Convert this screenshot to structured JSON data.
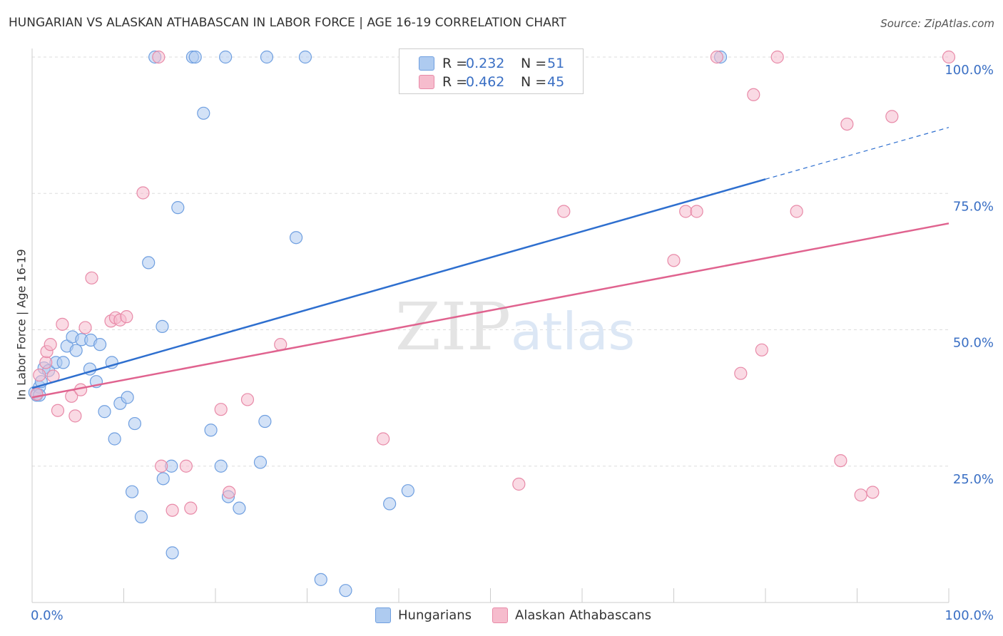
{
  "header": {
    "title": "HUNGARIAN VS ALASKAN ATHABASCAN IN LABOR FORCE | AGE 16-19 CORRELATION CHART",
    "source": "Source: ZipAtlas.com"
  },
  "watermark": {
    "zip": "ZIP",
    "atlas": "atlas"
  },
  "legend": {
    "r_key": "R =",
    "n_key": "N =",
    "rows": [
      {
        "r": "0.232",
        "n": "51"
      },
      {
        "r": "0.462",
        "n": "45"
      }
    ]
  },
  "colors": {
    "hungarian_fill": "#aecbf0",
    "hungarian_stroke": "#6f9fe0",
    "hungarian_line": "#2e6fcf",
    "alaskan_fill": "#f6bccd",
    "alaskan_stroke": "#e88aa8",
    "alaskan_line": "#e0638f",
    "tick_label": "#3a6fc4",
    "grid": "#dddddd"
  },
  "chart_data": {
    "type": "scatter",
    "title": "HUNGARIAN VS ALASKAN ATHABASCAN IN LABOR FORCE | AGE 16-19 CORRELATION CHART",
    "xlabel": "",
    "ylabel": "In Labor Force | Age 16-19",
    "xlim": [
      0,
      100
    ],
    "ylim": [
      0,
      100
    ],
    "x_tick_labels": [
      "0.0%",
      "100.0%"
    ],
    "y_ticks": [
      25,
      50,
      75,
      100
    ],
    "y_tick_labels": [
      "25.0%",
      "50.0%",
      "75.0%",
      "100.0%"
    ],
    "grid": true,
    "legend_position": "top-center",
    "series": [
      {
        "name": "Hungarians",
        "r": 0.232,
        "n": 51,
        "trend": {
          "x0": 0,
          "y0": 39.3,
          "x1": 80,
          "y1": 77.6,
          "dash_to_x": 100,
          "dash_to_y": 87.1
        },
        "points": [
          [
            0.3,
            38.5
          ],
          [
            0.5,
            38
          ],
          [
            0.8,
            39.5
          ],
          [
            1.0,
            40.5
          ],
          [
            1.3,
            43
          ],
          [
            1.8,
            42.5
          ],
          [
            2.6,
            44
          ],
          [
            3.4,
            44
          ],
          [
            3.8,
            47
          ],
          [
            4.4,
            48.7
          ],
          [
            4.8,
            46.2
          ],
          [
            5.4,
            48.2
          ],
          [
            6.4,
            48.1
          ],
          [
            7.0,
            40.5
          ],
          [
            7.4,
            47.3
          ],
          [
            6.3,
            42.8
          ],
          [
            8.7,
            44
          ],
          [
            7.9,
            35
          ],
          [
            9.6,
            36.5
          ],
          [
            10.4,
            37.6
          ],
          [
            9.0,
            30
          ],
          [
            11.2,
            32.8
          ],
          [
            10.9,
            20.3
          ],
          [
            11.9,
            15.7
          ],
          [
            14.2,
            50.6
          ],
          [
            15.2,
            25
          ],
          [
            14.3,
            22.7
          ],
          [
            15.3,
            9.1
          ],
          [
            15.9,
            72.4
          ],
          [
            12.7,
            62.3
          ],
          [
            18.7,
            89.7
          ],
          [
            19.5,
            31.6
          ],
          [
            20.6,
            25
          ],
          [
            21.4,
            19.4
          ],
          [
            22.6,
            17.3
          ],
          [
            24.9,
            25.7
          ],
          [
            25.4,
            33.2
          ],
          [
            28.8,
            66.9
          ],
          [
            31.5,
            4.2
          ],
          [
            34.2,
            2.2
          ],
          [
            39.0,
            18.1
          ],
          [
            41.0,
            20.5
          ],
          [
            13.4,
            100
          ],
          [
            17.5,
            100
          ],
          [
            17.8,
            100
          ],
          [
            21.1,
            100
          ],
          [
            25.6,
            100
          ],
          [
            29.8,
            100
          ],
          [
            41.4,
            100
          ],
          [
            75.1,
            100
          ],
          [
            0.8,
            38
          ]
        ]
      },
      {
        "name": "Alaskan Athabascans",
        "r": 0.462,
        "n": 45,
        "trend": {
          "x0": 0,
          "y0": 37.6,
          "x1": 100,
          "y1": 69.5
        },
        "points": [
          [
            0.5,
            38.2
          ],
          [
            0.8,
            41.7
          ],
          [
            1.5,
            44
          ],
          [
            1.6,
            46
          ],
          [
            2.0,
            47.3
          ],
          [
            2.3,
            41.5
          ],
          [
            2.8,
            35.2
          ],
          [
            3.3,
            51
          ],
          [
            4.3,
            37.8
          ],
          [
            4.7,
            34.2
          ],
          [
            5.3,
            39
          ],
          [
            5.8,
            50.4
          ],
          [
            6.5,
            59.5
          ],
          [
            8.6,
            51.6
          ],
          [
            9.1,
            52.2
          ],
          [
            9.6,
            51.8
          ],
          [
            10.3,
            52.4
          ],
          [
            12.1,
            75.1
          ],
          [
            14.1,
            25
          ],
          [
            15.3,
            16.9
          ],
          [
            16.8,
            25
          ],
          [
            17.3,
            17.3
          ],
          [
            20.6,
            35.4
          ],
          [
            21.5,
            20.2
          ],
          [
            23.5,
            37.2
          ],
          [
            27.1,
            47.3
          ],
          [
            38.3,
            30
          ],
          [
            53.1,
            21.7
          ],
          [
            58.0,
            71.7
          ],
          [
            70.0,
            62.7
          ],
          [
            71.3,
            71.7
          ],
          [
            72.5,
            71.7
          ],
          [
            74.7,
            100
          ],
          [
            78.7,
            93.1
          ],
          [
            81.3,
            100
          ],
          [
            77.3,
            42
          ],
          [
            79.6,
            46.3
          ],
          [
            83.4,
            71.7
          ],
          [
            88.2,
            26
          ],
          [
            88.9,
            87.7
          ],
          [
            90.4,
            19.7
          ],
          [
            91.7,
            20.2
          ],
          [
            93.8,
            89.1
          ],
          [
            100.0,
            100
          ],
          [
            13.8,
            100
          ]
        ]
      }
    ]
  },
  "bottom_legend": [
    "Hungarians",
    "Alaskan Athabascans"
  ]
}
